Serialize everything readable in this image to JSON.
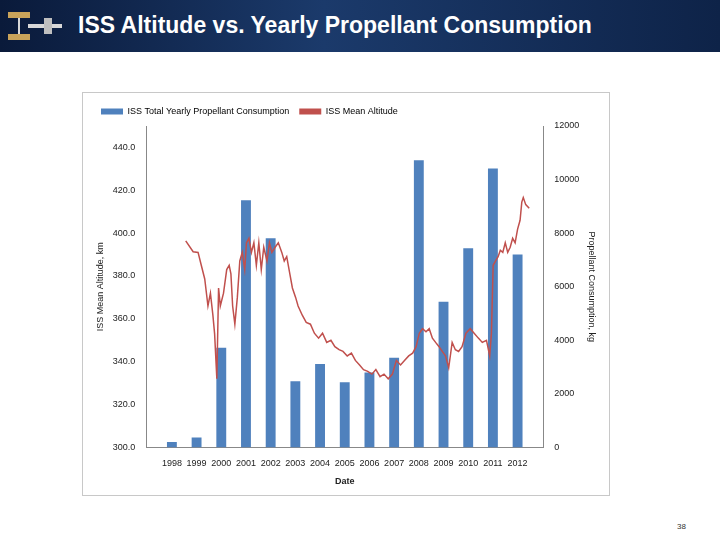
{
  "chart_data": {
    "type": "bar",
    "title": "ISS Altitude vs. Yearly Propellant Consumption",
    "x_label": "Date",
    "y_label": "ISS Mean Altitude, km",
    "y2_label": "Propellant Consumption, kg",
    "xlim": [
      1997.5,
      2012.5
    ],
    "xticks": [
      1998,
      1999,
      2000,
      2001,
      2002,
      2003,
      2004,
      2005,
      2006,
      2007,
      2008,
      2009,
      2010,
      2011,
      2012
    ],
    "ylim": [
      300,
      450
    ],
    "yticks": [
      {
        "value": 300,
        "label": "300.0"
      },
      {
        "value": 320,
        "label": "320.0"
      },
      {
        "value": 340,
        "label": "340.0"
      },
      {
        "value": 360,
        "label": "360.0"
      },
      {
        "value": 380,
        "label": "380.0"
      },
      {
        "value": 400,
        "label": "400.0"
      },
      {
        "value": 420,
        "label": "420.0"
      },
      {
        "value": 440,
        "label": "440.0"
      }
    ],
    "y2lim": [
      0,
      12000
    ],
    "y2ticks": [
      0,
      2000,
      4000,
      6000,
      8000,
      10000,
      12000
    ],
    "grid": false,
    "legend": "top-left",
    "series": [
      {
        "name": "ISS Total Yearly Propellant Consumption",
        "type": "bar",
        "axis": "y2",
        "color": "#4f81bd",
        "x": [
          1998,
          1999,
          2000,
          2001,
          2002,
          2003,
          2004,
          2005,
          2006,
          2007,
          2008,
          2009,
          2010,
          2011,
          2012
        ],
        "values": [
          200,
          370,
          3720,
          9230,
          7810,
          2470,
          3110,
          2430,
          2800,
          3350,
          10720,
          5440,
          7440,
          10410,
          7200
        ]
      },
      {
        "name": "ISS Mean Altitude",
        "type": "line",
        "axis": "y",
        "color": "#c0504d",
        "x": [
          1998.56,
          1998.86,
          1999.06,
          1999.19,
          1999.33,
          1999.46,
          1999.56,
          1999.66,
          1999.73,
          1999.82,
          1999.89,
          1999.96,
          2000.09,
          2000.22,
          2000.32,
          2000.39,
          2000.46,
          2000.55,
          2000.65,
          2000.75,
          2000.85,
          2000.95,
          2001.02,
          2001.12,
          2001.22,
          2001.32,
          2001.42,
          2001.52,
          2001.62,
          2001.72,
          2001.85,
          2001.95,
          2002.05,
          2002.18,
          2002.31,
          2002.45,
          2002.55,
          2002.65,
          2002.78,
          2002.88,
          2003.01,
          2003.11,
          2003.28,
          2003.44,
          2003.61,
          2003.77,
          2003.94,
          2004.1,
          2004.27,
          2004.44,
          2004.6,
          2004.77,
          2004.93,
          2005.1,
          2005.27,
          2005.43,
          2005.6,
          2005.76,
          2005.93,
          2006.1,
          2006.26,
          2006.43,
          2006.59,
          2006.76,
          2006.93,
          2007.09,
          2007.26,
          2007.42,
          2007.59,
          2007.75,
          2007.89,
          2008.02,
          2008.15,
          2008.29,
          2008.42,
          2008.55,
          2008.68,
          2008.82,
          2008.95,
          2009.08,
          2009.21,
          2009.35,
          2009.48,
          2009.61,
          2009.75,
          2009.91,
          2010.08,
          2010.24,
          2010.41,
          2010.57,
          2010.74,
          2010.87,
          2010.94,
          2011.01,
          2011.11,
          2011.21,
          2011.3,
          2011.4,
          2011.5,
          2011.6,
          2011.7,
          2011.8,
          2011.9,
          2012.0,
          2012.1,
          2012.17,
          2012.23,
          2012.33,
          2012.47
        ],
        "values": [
          396.4,
          391.3,
          391,
          385,
          378.6,
          366,
          372,
          361.7,
          353,
          332,
          374.4,
          366,
          372,
          383,
          385,
          381,
          366,
          357.5,
          370,
          387,
          391,
          383,
          395.5,
          397.6,
          391,
          395.5,
          385,
          395.5,
          383,
          393.4,
          387,
          395.5,
          391,
          393.4,
          395.5,
          391,
          387,
          389,
          380.7,
          374.4,
          370,
          366,
          361.7,
          358.3,
          357.5,
          353.3,
          351,
          353.3,
          349,
          350,
          347,
          345.6,
          344.8,
          342.7,
          344,
          340.6,
          338.5,
          336.3,
          335.5,
          334.2,
          336.3,
          333,
          334.2,
          332,
          334.2,
          340.6,
          338.5,
          340.6,
          342.7,
          344,
          347,
          353.3,
          355.4,
          354,
          355.4,
          351,
          349,
          347,
          344.8,
          342.7,
          337.2,
          349,
          345.6,
          344.8,
          347,
          353.3,
          355.4,
          353.3,
          351,
          349,
          350,
          342.7,
          353.3,
          385,
          387,
          389,
          392,
          391,
          395.5,
          391,
          393.4,
          397.6,
          395.5,
          401.9,
          406,
          414.5,
          416.6,
          413.3,
          411.6
        ]
      }
    ]
  },
  "page_number": "38"
}
